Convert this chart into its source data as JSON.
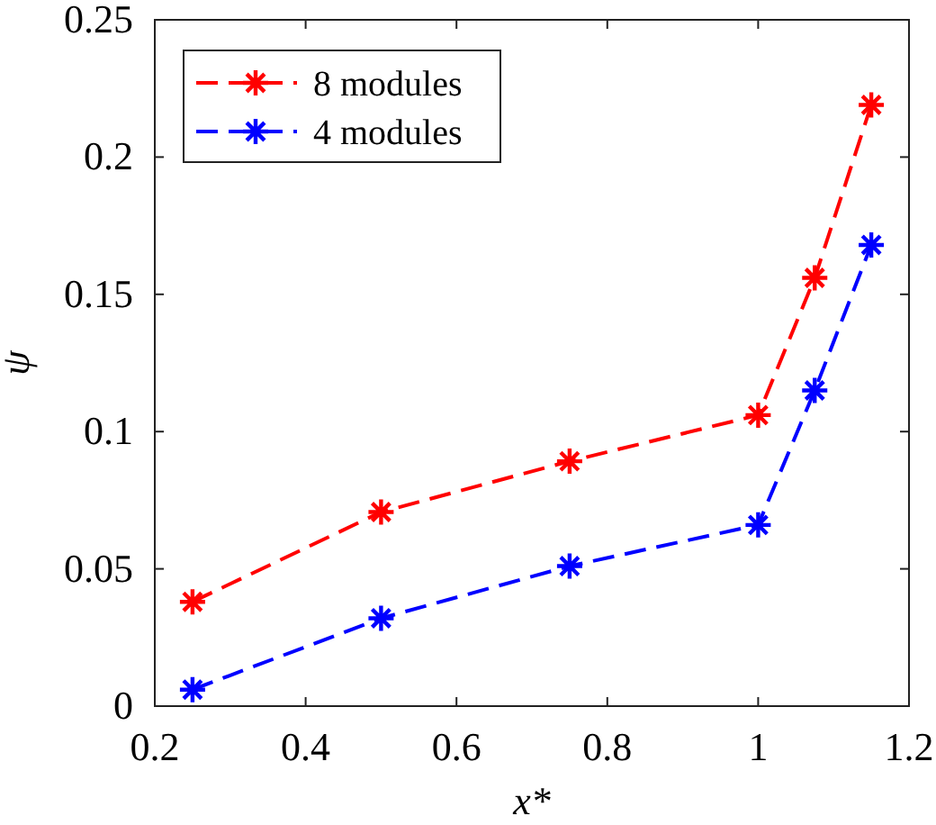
{
  "chart_data": {
    "type": "line",
    "xlabel": "x*",
    "ylabel": "ψ",
    "x": [
      0.25,
      0.5,
      0.75,
      1,
      1.075,
      1.15
    ],
    "series": [
      {
        "name": "8 modules",
        "color": "#ff0000",
        "values": [
          0.038,
          0.0707,
          0.0892,
          0.106,
          0.156,
          0.219
        ]
      },
      {
        "name": "4 modules",
        "color": "#0000ff",
        "values": [
          0.006,
          0.032,
          0.051,
          0.066,
          0.115,
          0.168
        ]
      }
    ],
    "xlim": [
      0.2,
      1.2
    ],
    "xticks": [
      0.2,
      0.4,
      0.6,
      0.8,
      1,
      1.2
    ],
    "ylim": [
      0,
      0.25
    ],
    "yticks": [
      0,
      0.05,
      0.1,
      0.15,
      0.2,
      0.25
    ],
    "legend": "top left",
    "marker": "cross",
    "line_style": "dashed",
    "grid": false
  }
}
